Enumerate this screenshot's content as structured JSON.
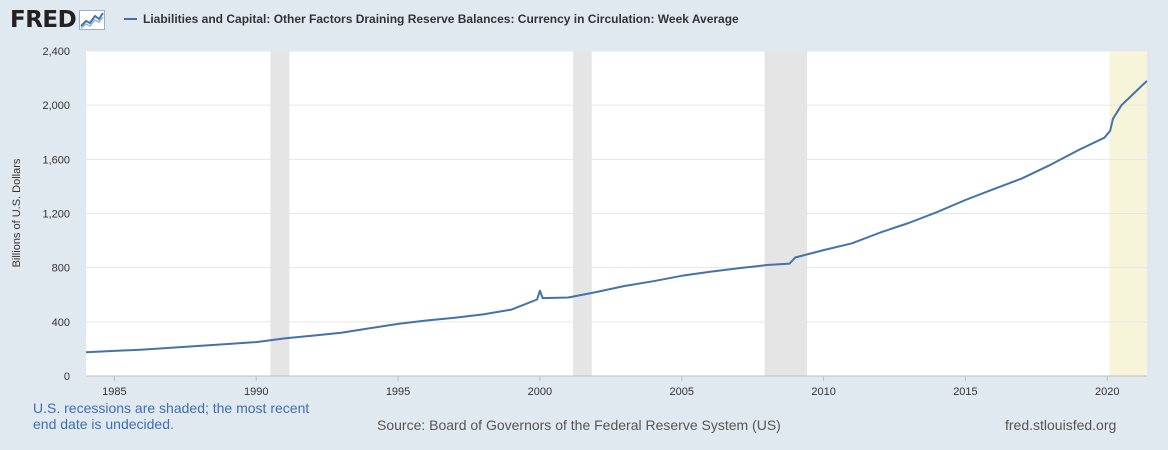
{
  "header": {
    "logo_text": "FRED",
    "logo_icon": "trend-graph-icon"
  },
  "chart_data": {
    "type": "line",
    "title": "Liabilities and Capital: Other Factors Draining Reserve Balances: Currency in Circulation: Week Average",
    "ylabel": "Billions of U.S. Dollars",
    "xlabel": "",
    "xlim": [
      "1984-01",
      "2021-05"
    ],
    "ylim": [
      0,
      2400
    ],
    "y_ticks": [
      0,
      400,
      800,
      1200,
      1600,
      2000,
      2400
    ],
    "y_tick_labels": [
      "0",
      "400",
      "800",
      "1,200",
      "1,600",
      "2,000",
      "2,400"
    ],
    "x_ticks": [
      1985,
      1990,
      1995,
      2000,
      2005,
      2010,
      2015,
      2020
    ],
    "x_tick_labels": [
      "1985",
      "1990",
      "1995",
      "2000",
      "2005",
      "2010",
      "2015",
      "2020"
    ],
    "grid": true,
    "legend_position": "top-left",
    "series": [
      {
        "name": "Liabilities and Capital: Other Factors Draining Reserve Balances: Currency in Circulation: Week Average",
        "color": "#4572a7",
        "x": [
          1984.0,
          1985.0,
          1986.0,
          1987.0,
          1988.0,
          1989.0,
          1990.0,
          1991.0,
          1992.0,
          1993.0,
          1994.0,
          1995.0,
          1996.0,
          1997.0,
          1998.0,
          1999.0,
          1999.9,
          2000.0,
          2000.1,
          2001.0,
          2002.0,
          2003.0,
          2004.0,
          2005.0,
          2006.0,
          2007.0,
          2008.0,
          2008.8,
          2009.0,
          2010.0,
          2011.0,
          2012.0,
          2013.0,
          2014.0,
          2015.0,
          2016.0,
          2017.0,
          2018.0,
          2019.0,
          2019.9,
          2020.1,
          2020.2,
          2020.5,
          2021.0,
          2021.4
        ],
        "values": [
          175,
          185,
          195,
          208,
          222,
          236,
          250,
          278,
          298,
          320,
          352,
          385,
          410,
          430,
          455,
          490,
          565,
          630,
          575,
          580,
          620,
          665,
          700,
          740,
          770,
          795,
          820,
          830,
          875,
          930,
          980,
          1060,
          1130,
          1210,
          1300,
          1380,
          1460,
          1560,
          1670,
          1760,
          1810,
          1900,
          2000,
          2100,
          2180
        ]
      }
    ],
    "recessions": [
      {
        "start": 1990.5,
        "end": 1991.17
      },
      {
        "start": 2001.17,
        "end": 2001.83
      },
      {
        "start": 2007.92,
        "end": 2009.42
      },
      {
        "start": 2020.08,
        "end": 2021.4
      }
    ]
  },
  "footer": {
    "note": "U.S. recessions are shaded; the most recent end date is undecided.",
    "source": "Source: Board of Governors of the Federal Reserve System (US)",
    "site": "fred.stlouisfed.org"
  }
}
